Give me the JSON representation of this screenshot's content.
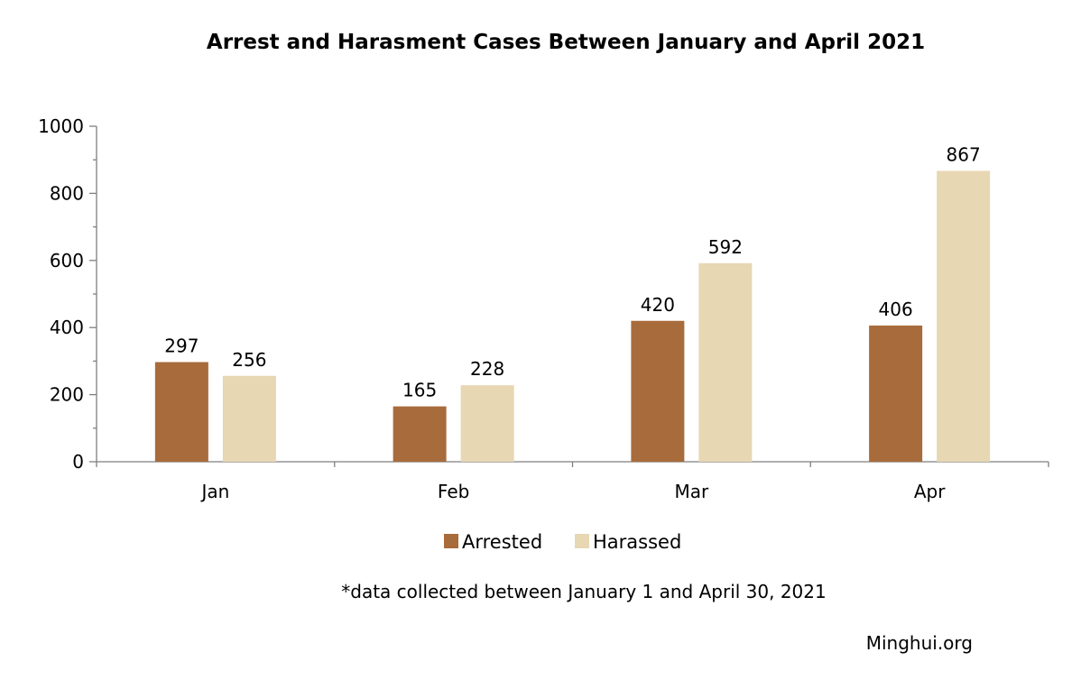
{
  "chart_data": {
    "type": "bar",
    "title": "Arrest and Harasment Cases Between January and April 2021",
    "categories": [
      "Jan",
      "Feb",
      "Mar",
      "Apr"
    ],
    "series": [
      {
        "name": "Arrested",
        "color": "#a86b3c",
        "values": [
          297,
          165,
          420,
          406
        ]
      },
      {
        "name": "Harassed",
        "color": "#e7d7b2",
        "values": [
          256,
          228,
          592,
          867
        ]
      }
    ],
    "ylim": [
      0,
      1000
    ],
    "yticks": [
      0,
      200,
      400,
      600,
      800,
      1000
    ],
    "xlabel": "",
    "ylabel": "",
    "grid": false,
    "legend_position": "bottom"
  },
  "footnote": "*data collected between January 1 and April 30, 2021",
  "source": "Minghui.org"
}
